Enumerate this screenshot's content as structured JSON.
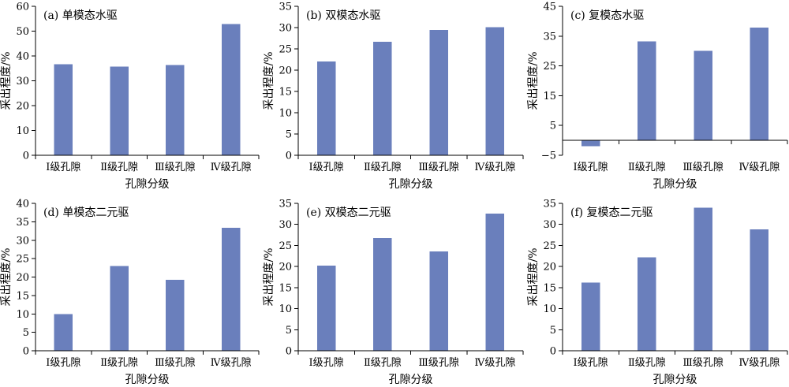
{
  "colors": {
    "bar": "#6A7FBC",
    "axis": "#000000"
  },
  "chart_data": [
    {
      "type": "bar",
      "title": "(a) 单模态水驱",
      "ylabel": "采出程度/%",
      "xlabel": "孔隙分级",
      "categories": [
        "Ⅰ级孔隙",
        "Ⅱ级孔隙",
        "Ⅲ级孔隙",
        "Ⅳ级孔隙"
      ],
      "values": [
        36.7,
        35.7,
        36.4,
        52.8
      ],
      "ylim": [
        0,
        60
      ],
      "yticks": [
        0,
        10,
        20,
        30,
        40,
        50,
        60
      ],
      "grid": false
    },
    {
      "type": "bar",
      "title": "(b) 双模态水驱",
      "ylabel": "采出程度/%",
      "xlabel": "孔隙分级",
      "categories": [
        "Ⅰ级孔隙",
        "Ⅱ级孔隙",
        "Ⅲ级孔隙",
        "Ⅳ级孔隙"
      ],
      "values": [
        22.0,
        26.7,
        29.4,
        30.1
      ],
      "ylim": [
        0,
        35
      ],
      "yticks": [
        0,
        5,
        10,
        15,
        20,
        25,
        30,
        35
      ],
      "grid": false
    },
    {
      "type": "bar",
      "title": "(c) 复模态水驱",
      "ylabel": "采出程度/%",
      "xlabel": "孔隙分级",
      "categories": [
        "Ⅰ级孔隙",
        "Ⅱ级孔隙",
        "Ⅲ级孔隙",
        "Ⅳ级孔隙"
      ],
      "values": [
        -2.0,
        33.2,
        30.0,
        37.8
      ],
      "ylim": [
        -5,
        45
      ],
      "yticks": [
        -5,
        5,
        15,
        25,
        35,
        45
      ],
      "grid": false
    },
    {
      "type": "bar",
      "title": "(d) 单模态二元驱",
      "ylabel": "采出程度/%",
      "xlabel": "孔隙分级",
      "categories": [
        "Ⅰ级孔隙",
        "Ⅱ级孔隙",
        "Ⅲ级孔隙",
        "Ⅳ级孔隙"
      ],
      "values": [
        10.0,
        23.0,
        19.2,
        33.4
      ],
      "ylim": [
        0,
        40
      ],
      "yticks": [
        0,
        5,
        10,
        15,
        20,
        25,
        30,
        35,
        40
      ],
      "grid": false
    },
    {
      "type": "bar",
      "title": "(e) 双模态二元驱",
      "ylabel": "采出程度/%",
      "xlabel": "孔隙分级",
      "categories": [
        "Ⅰ级孔隙",
        "Ⅱ级孔隙",
        "Ⅲ级孔隙",
        "Ⅳ级孔隙"
      ],
      "values": [
        20.2,
        26.8,
        23.6,
        32.6
      ],
      "ylim": [
        0,
        35
      ],
      "yticks": [
        0,
        5,
        10,
        15,
        20,
        25,
        30,
        35
      ],
      "grid": false
    },
    {
      "type": "bar",
      "title": "(f) 复模态二元驱",
      "ylabel": "采出程度/%",
      "xlabel": "孔隙分级",
      "categories": [
        "Ⅰ级孔隙",
        "Ⅱ级孔隙",
        "Ⅲ级孔隙",
        "Ⅳ级孔隙"
      ],
      "values": [
        16.2,
        22.2,
        34.0,
        28.8
      ],
      "ylim": [
        0,
        35
      ],
      "yticks": [
        0,
        5,
        10,
        15,
        20,
        25,
        30,
        35
      ],
      "grid": false
    }
  ]
}
